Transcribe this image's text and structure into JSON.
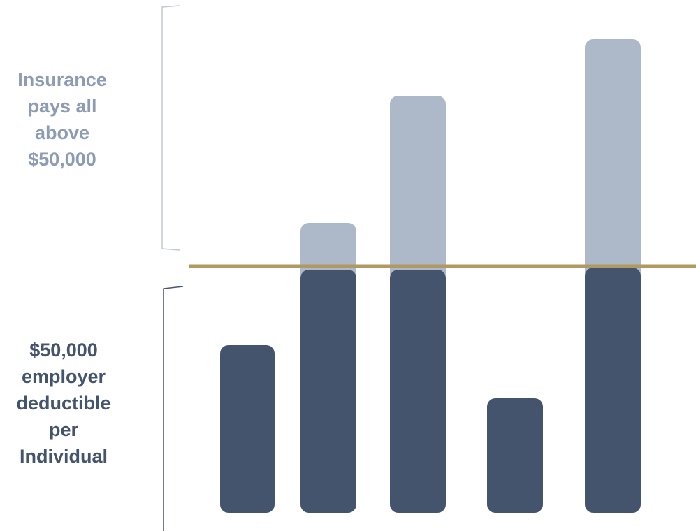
{
  "upper_label": "Insurance\npays all\nabove\n$50,000",
  "lower_label": "$50,000\nemployer\ndeductible\nper\nIndividual",
  "colors": {
    "insurance_bar": "#adb8c9",
    "employer_bar": "#44546c",
    "threshold_line": "#b09a62",
    "upper_bracket": "#c2c9d5",
    "lower_bracket": "#44546c",
    "upper_label": "#8d9bb4",
    "lower_label": "#44546c"
  }
}
